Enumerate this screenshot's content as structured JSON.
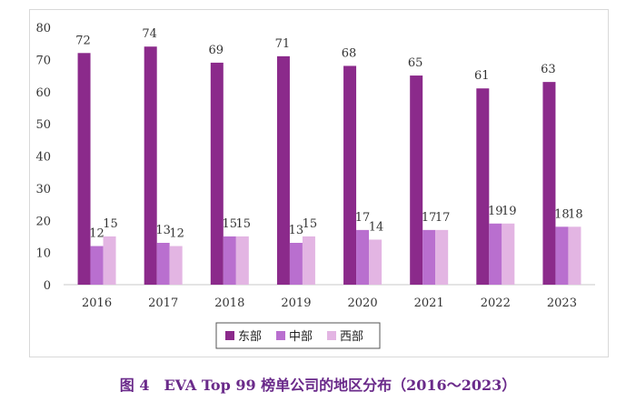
{
  "caption": "图 4　EVA Top 99 榜单公司的地区分布（2016～2023）",
  "chart_data": {
    "type": "bar",
    "title": "",
    "xlabel": "",
    "ylabel": "",
    "ylim": [
      0,
      80
    ],
    "yticks": [
      0,
      10,
      20,
      30,
      40,
      50,
      60,
      70,
      80
    ],
    "grid": false,
    "legend_position": "bottom",
    "categories": [
      "2016",
      "2017",
      "2018",
      "2019",
      "2020",
      "2021",
      "2022",
      "2023"
    ],
    "series": [
      {
        "name": "东部",
        "color": "#8b2a8b",
        "values": [
          72,
          74,
          69,
          71,
          68,
          65,
          61,
          63
        ]
      },
      {
        "name": "中部",
        "color": "#b96fcf",
        "values": [
          12,
          13,
          15,
          13,
          17,
          17,
          19,
          18
        ]
      },
      {
        "name": "西部",
        "color": "#e3b5e3",
        "values": [
          15,
          12,
          15,
          15,
          14,
          17,
          19,
          18
        ]
      }
    ]
  }
}
